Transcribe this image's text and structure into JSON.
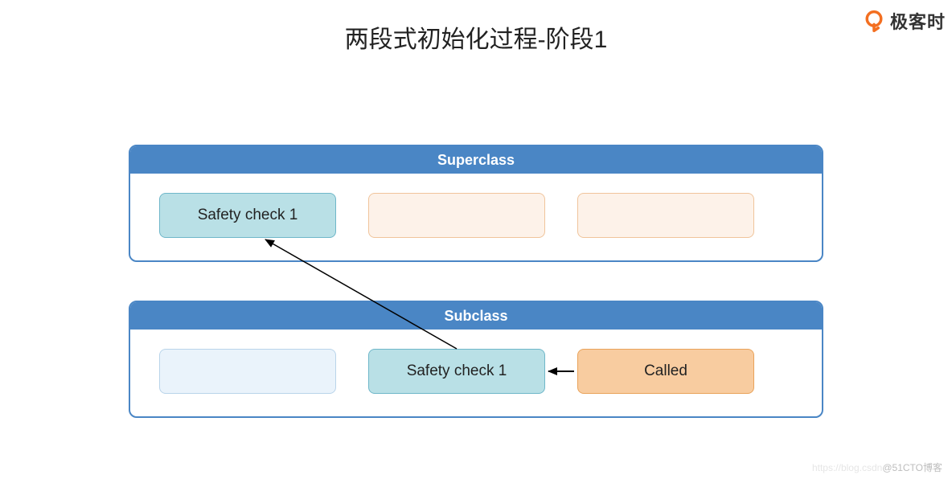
{
  "title": "两段式初始化过程-阶段1",
  "logo": {
    "text": "极客时",
    "brand_color": "#f36f21"
  },
  "superclass": {
    "header": "Superclass",
    "header_bg": "#4a86c5",
    "border_color": "#4a86c5",
    "body_bg": "#ffffff",
    "slots": [
      {
        "label": "Safety check 1",
        "fill": "#b9e0e6",
        "border": "#6fb7c9"
      },
      {
        "label": "",
        "fill": "#fdf2e9",
        "border": "#f0c49b"
      },
      {
        "label": "",
        "fill": "#fdf2e9",
        "border": "#f0c49b"
      }
    ]
  },
  "subclass": {
    "header": "Subclass",
    "header_bg": "#4a86c5",
    "border_color": "#4a86c5",
    "body_bg": "#ffffff",
    "slots": [
      {
        "label": "",
        "fill": "#eaf3fb",
        "border": "#b9d4ea"
      },
      {
        "label": "Safety check 1",
        "fill": "#b9e0e6",
        "border": "#6fb7c9"
      },
      {
        "label": "Called",
        "fill": "#f8ccA0",
        "border": "#e9a35a"
      }
    ]
  },
  "gap_between_boxes": 48,
  "arrows": {
    "diagonal": {
      "from": "subclass.slot1.top",
      "to": "superclass.slot0.bottom",
      "color": "#000000",
      "width": 1.5
    },
    "horizontal": {
      "from": "subclass.slot2.left",
      "to": "subclass.slot1.right",
      "color": "#000000",
      "width": 2
    }
  },
  "watermark": {
    "faint": "https://blog.csdn",
    "text": "@51CTO博客"
  }
}
